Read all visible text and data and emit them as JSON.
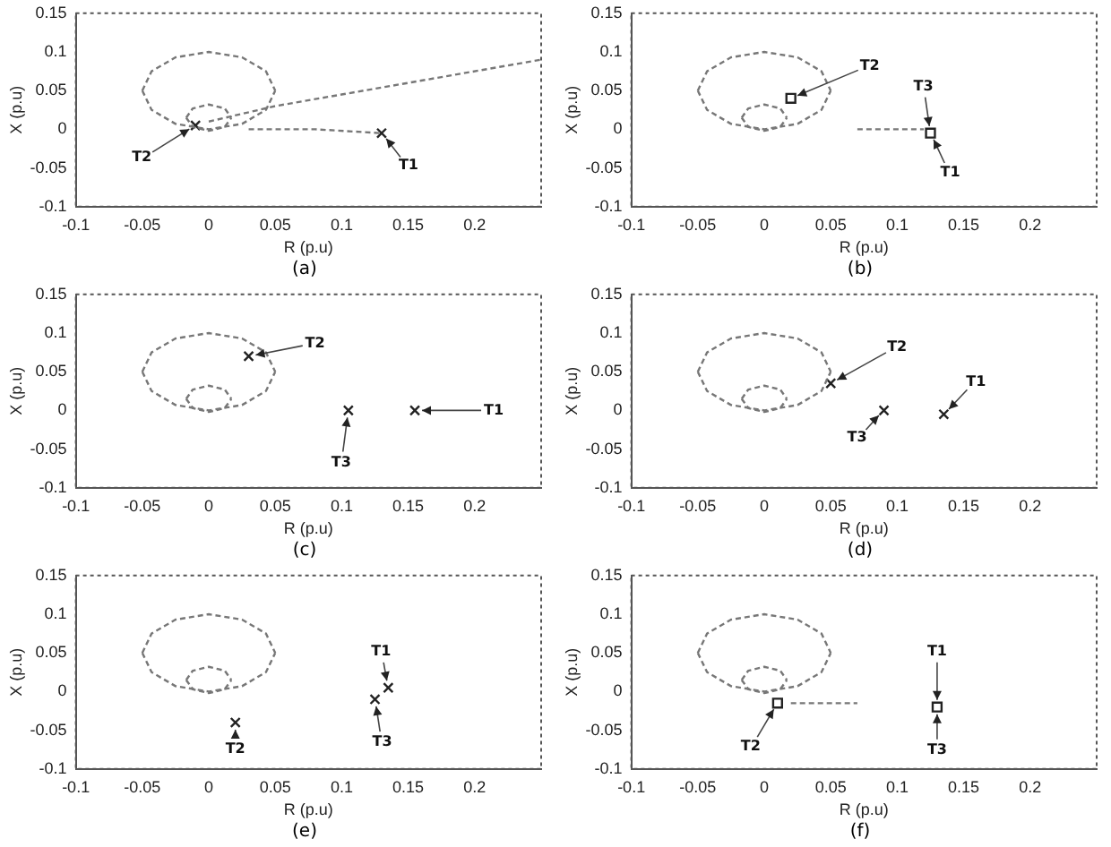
{
  "chart_data": [
    {
      "type": "line",
      "xlabel": "R (p.u)",
      "ylabel": "X (p.u)",
      "xlim": [
        -0.1,
        0.25
      ],
      "ylim": [
        -0.1,
        0.15
      ],
      "xticks": [
        -0.1,
        -0.05,
        0,
        0.05,
        0.1,
        0.15,
        0.2
      ],
      "yticks": [
        -0.1,
        -0.05,
        0,
        0.05,
        0.1,
        0.15
      ],
      "grid": false,
      "legend": false,
      "line_style": "dashed",
      "annotations": [
        "(a)",
        {
          "text": "T1",
          "x": 0.13,
          "y": -0.005
        },
        {
          "text": "T2",
          "x": -0.01,
          "y": 0.005
        }
      ],
      "series": [
        {
          "color": "#777777",
          "x": [
            -0.05,
            -0.043,
            -0.025,
            0,
            0.025,
            0.043,
            0.05
          ],
          "values": [
            0.05,
            0.075,
            0.093,
            0.1,
            0.093,
            0.075,
            0.05
          ]
        },
        {
          "color": "#777777",
          "x": [
            -0.05,
            -0.043,
            -0.025,
            0,
            0.025,
            0.043,
            0.05
          ],
          "values": [
            0.05,
            0.025,
            0.007,
            0,
            0.007,
            0.025,
            0.05
          ]
        },
        {
          "color": "#777777",
          "x": [
            -0.017,
            -0.012,
            0,
            0.012,
            0.017
          ],
          "values": [
            0.015,
            0.027,
            0.032,
            0.027,
            0.015
          ]
        },
        {
          "color": "#777777",
          "x": [
            -0.017,
            -0.012,
            0,
            0.012,
            0.017
          ],
          "values": [
            0.015,
            0.003,
            -0.002,
            0.003,
            0.015
          ]
        },
        {
          "color": "#777777",
          "x": [
            0,
            0.05,
            0.15,
            0.25
          ],
          "values": [
            0.01,
            0.03,
            0.06,
            0.09
          ]
        },
        {
          "color": "#777777",
          "x": [
            0.03,
            0.08,
            0.13
          ],
          "values": [
            0,
            0,
            -0.005
          ]
        },
        {
          "type": "scatter",
          "marker": "cross",
          "color": "#222222",
          "x": [
            -0.01,
            0.13
          ],
          "values": [
            0.005,
            -0.005
          ]
        }
      ]
    },
    {
      "type": "line",
      "xlabel": "R (p.u)",
      "ylabel": "X (p.u)",
      "xlim": [
        -0.1,
        0.25
      ],
      "ylim": [
        -0.1,
        0.15
      ],
      "xticks": [
        -0.1,
        -0.05,
        0,
        0.05,
        0.1,
        0.15,
        0.2
      ],
      "yticks": [
        -0.1,
        -0.05,
        0,
        0.05,
        0.1,
        0.15
      ],
      "grid": false,
      "legend": false,
      "line_style": "dashed",
      "annotations": [
        "(b)",
        {
          "text": "T2",
          "x": 0.02,
          "y": 0.04
        },
        {
          "text": "T3",
          "x": 0.125,
          "y": -0.005
        },
        {
          "text": "T1",
          "x": 0.125,
          "y": -0.005
        }
      ],
      "series": [
        {
          "color": "#777777",
          "x": [
            -0.05,
            -0.043,
            -0.025,
            0,
            0.025,
            0.043,
            0.05
          ],
          "values": [
            0.05,
            0.075,
            0.093,
            0.1,
            0.093,
            0.075,
            0.05
          ]
        },
        {
          "color": "#777777",
          "x": [
            -0.05,
            -0.043,
            -0.025,
            0,
            0.025,
            0.043,
            0.05
          ],
          "values": [
            0.05,
            0.025,
            0.007,
            0,
            0.007,
            0.025,
            0.05
          ]
        },
        {
          "color": "#777777",
          "x": [
            -0.017,
            -0.012,
            0,
            0.012,
            0.017
          ],
          "values": [
            0.015,
            0.027,
            0.032,
            0.027,
            0.015
          ]
        },
        {
          "color": "#777777",
          "x": [
            -0.017,
            -0.012,
            0,
            0.012,
            0.017
          ],
          "values": [
            0.015,
            0.003,
            -0.002,
            0.003,
            0.015
          ]
        },
        {
          "color": "#777777",
          "x": [
            0.07,
            0.12
          ],
          "values": [
            0,
            0
          ]
        },
        {
          "type": "scatter",
          "marker": "square",
          "color": "#222222",
          "x": [
            0.02,
            0.125
          ],
          "values": [
            0.04,
            -0.005
          ]
        }
      ]
    },
    {
      "type": "line",
      "xlabel": "R (p.u)",
      "ylabel": "X (p.u)",
      "xlim": [
        -0.1,
        0.25
      ],
      "ylim": [
        -0.1,
        0.15
      ],
      "xticks": [
        -0.1,
        -0.05,
        0,
        0.05,
        0.1,
        0.15,
        0.2
      ],
      "yticks": [
        -0.1,
        -0.05,
        0,
        0.05,
        0.1,
        0.15
      ],
      "grid": false,
      "legend": false,
      "line_style": "dashed",
      "annotations": [
        "(c)",
        {
          "text": "T2",
          "x": 0.03,
          "y": 0.07
        },
        {
          "text": "T1",
          "x": 0.155,
          "y": 0
        },
        {
          "text": "T3",
          "x": 0.105,
          "y": 0
        }
      ],
      "series": [
        {
          "color": "#777777",
          "x": [
            -0.05,
            -0.043,
            -0.025,
            0,
            0.025,
            0.043,
            0.05
          ],
          "values": [
            0.05,
            0.075,
            0.093,
            0.1,
            0.093,
            0.075,
            0.05
          ]
        },
        {
          "color": "#777777",
          "x": [
            -0.05,
            -0.043,
            -0.025,
            0,
            0.025,
            0.043,
            0.05
          ],
          "values": [
            0.05,
            0.025,
            0.007,
            0,
            0.007,
            0.025,
            0.05
          ]
        },
        {
          "color": "#777777",
          "x": [
            -0.017,
            -0.012,
            0,
            0.012,
            0.017
          ],
          "values": [
            0.015,
            0.027,
            0.032,
            0.027,
            0.015
          ]
        },
        {
          "color": "#777777",
          "x": [
            -0.017,
            -0.012,
            0,
            0.012,
            0.017
          ],
          "values": [
            0.015,
            0.003,
            -0.002,
            0.003,
            0.015
          ]
        },
        {
          "type": "scatter",
          "marker": "cross",
          "color": "#222222",
          "x": [
            0.03,
            0.105,
            0.155
          ],
          "values": [
            0.07,
            0,
            0
          ]
        }
      ]
    },
    {
      "type": "line",
      "xlabel": "R (p.u)",
      "ylabel": "X (p.u)",
      "xlim": [
        -0.1,
        0.25
      ],
      "ylim": [
        -0.1,
        0.15
      ],
      "xticks": [
        -0.1,
        -0.05,
        0,
        0.05,
        0.1,
        0.15,
        0.2
      ],
      "yticks": [
        -0.1,
        -0.05,
        0,
        0.05,
        0.1,
        0.15
      ],
      "grid": false,
      "legend": false,
      "line_style": "dashed",
      "annotations": [
        "(d)",
        {
          "text": "T2",
          "x": 0.05,
          "y": 0.035
        },
        {
          "text": "T1",
          "x": 0.135,
          "y": -0.005
        },
        {
          "text": "T3",
          "x": 0.09,
          "y": 0
        }
      ],
      "series": [
        {
          "color": "#777777",
          "x": [
            -0.05,
            -0.043,
            -0.025,
            0,
            0.025,
            0.043,
            0.05
          ],
          "values": [
            0.05,
            0.075,
            0.093,
            0.1,
            0.093,
            0.075,
            0.05
          ]
        },
        {
          "color": "#777777",
          "x": [
            -0.05,
            -0.043,
            -0.025,
            0,
            0.025,
            0.043,
            0.05
          ],
          "values": [
            0.05,
            0.025,
            0.007,
            0,
            0.007,
            0.025,
            0.05
          ]
        },
        {
          "color": "#777777",
          "x": [
            -0.017,
            -0.012,
            0,
            0.012,
            0.017
          ],
          "values": [
            0.015,
            0.027,
            0.032,
            0.027,
            0.015
          ]
        },
        {
          "color": "#777777",
          "x": [
            -0.017,
            -0.012,
            0,
            0.012,
            0.017
          ],
          "values": [
            0.015,
            0.003,
            -0.002,
            0.003,
            0.015
          ]
        },
        {
          "type": "scatter",
          "marker": "cross",
          "color": "#222222",
          "x": [
            0.05,
            0.09,
            0.135
          ],
          "values": [
            0.035,
            0,
            -0.005
          ]
        }
      ]
    },
    {
      "type": "line",
      "xlabel": "R (p.u)",
      "ylabel": "X (p.u)",
      "xlim": [
        -0.1,
        0.25
      ],
      "ylim": [
        -0.1,
        0.15
      ],
      "xticks": [
        -0.1,
        -0.05,
        0,
        0.05,
        0.1,
        0.15,
        0.2
      ],
      "yticks": [
        -0.1,
        -0.05,
        0,
        0.05,
        0.1,
        0.15
      ],
      "grid": false,
      "legend": false,
      "line_style": "dashed",
      "annotations": [
        "(e)",
        {
          "text": "T1",
          "x": 0.135,
          "y": 0.005
        },
        {
          "text": "T3",
          "x": 0.125,
          "y": -0.01
        },
        {
          "text": "T2",
          "x": 0.02,
          "y": -0.04
        }
      ],
      "series": [
        {
          "color": "#777777",
          "x": [
            -0.05,
            -0.043,
            -0.025,
            0,
            0.025,
            0.043,
            0.05
          ],
          "values": [
            0.05,
            0.075,
            0.093,
            0.1,
            0.093,
            0.075,
            0.05
          ]
        },
        {
          "color": "#777777",
          "x": [
            -0.05,
            -0.043,
            -0.025,
            0,
            0.025,
            0.043,
            0.05
          ],
          "values": [
            0.05,
            0.025,
            0.007,
            0,
            0.007,
            0.025,
            0.05
          ]
        },
        {
          "color": "#777777",
          "x": [
            -0.017,
            -0.012,
            0,
            0.012,
            0.017
          ],
          "values": [
            0.015,
            0.027,
            0.032,
            0.027,
            0.015
          ]
        },
        {
          "color": "#777777",
          "x": [
            -0.017,
            -0.012,
            0,
            0.012,
            0.017
          ],
          "values": [
            0.015,
            0.003,
            -0.002,
            0.003,
            0.015
          ]
        },
        {
          "type": "scatter",
          "marker": "cross",
          "color": "#222222",
          "x": [
            0.02,
            0.125,
            0.135
          ],
          "values": [
            -0.04,
            -0.01,
            0.005
          ]
        }
      ]
    },
    {
      "type": "line",
      "xlabel": "R (p.u)",
      "ylabel": "X (p.u)",
      "xlim": [
        -0.1,
        0.25
      ],
      "ylim": [
        -0.1,
        0.15
      ],
      "xticks": [
        -0.1,
        -0.05,
        0,
        0.05,
        0.1,
        0.15,
        0.2
      ],
      "yticks": [
        -0.1,
        -0.05,
        0,
        0.05,
        0.1,
        0.15
      ],
      "grid": false,
      "legend": false,
      "line_style": "dashed",
      "annotations": [
        "(f)",
        {
          "text": "T1",
          "x": 0.13,
          "y": -0.02
        },
        {
          "text": "T3",
          "x": 0.13,
          "y": -0.02
        },
        {
          "text": "T2",
          "x": 0.01,
          "y": -0.015
        }
      ],
      "series": [
        {
          "color": "#777777",
          "x": [
            -0.05,
            -0.043,
            -0.025,
            0,
            0.025,
            0.043,
            0.05
          ],
          "values": [
            0.05,
            0.075,
            0.093,
            0.1,
            0.093,
            0.075,
            0.05
          ]
        },
        {
          "color": "#777777",
          "x": [
            -0.05,
            -0.043,
            -0.025,
            0,
            0.025,
            0.043,
            0.05
          ],
          "values": [
            0.05,
            0.025,
            0.007,
            0,
            0.007,
            0.025,
            0.05
          ]
        },
        {
          "color": "#777777",
          "x": [
            -0.017,
            -0.012,
            0,
            0.012,
            0.017
          ],
          "values": [
            0.015,
            0.027,
            0.032,
            0.027,
            0.015
          ]
        },
        {
          "color": "#777777",
          "x": [
            -0.017,
            -0.012,
            0,
            0.012,
            0.017
          ],
          "values": [
            0.015,
            0.003,
            -0.002,
            0.003,
            0.015
          ]
        },
        {
          "color": "#777777",
          "x": [
            0.02,
            0.07
          ],
          "values": [
            -0.015,
            -0.015
          ]
        },
        {
          "type": "scatter",
          "marker": "square",
          "color": "#222222",
          "x": [
            0.01,
            0.13
          ],
          "values": [
            -0.015,
            -0.02
          ]
        }
      ]
    }
  ]
}
